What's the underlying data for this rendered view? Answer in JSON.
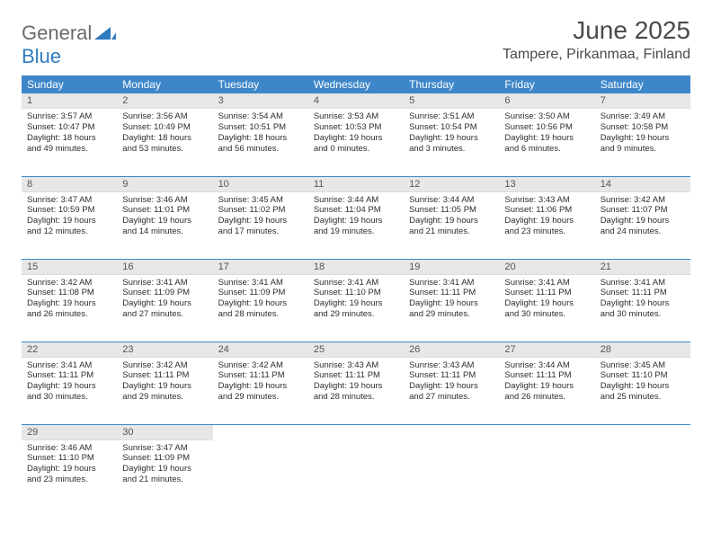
{
  "logo": {
    "part1": "General",
    "part2": "Blue"
  },
  "title": "June 2025",
  "location": "Tampere, Pirkanmaa, Finland",
  "colors": {
    "header_bg": "#3d87c9",
    "header_text": "#ffffff",
    "daynum_bg": "#e7e7e7",
    "rule": "#3d87c9",
    "logo_gray": "#6a6a6a",
    "logo_blue": "#2f7bbf"
  },
  "typography": {
    "title_fontsize": 28,
    "location_fontsize": 16,
    "dayheader_fontsize": 12,
    "daynum_fontsize": 11,
    "body_fontsize": 9.5
  },
  "day_headers": [
    "Sunday",
    "Monday",
    "Tuesday",
    "Wednesday",
    "Thursday",
    "Friday",
    "Saturday"
  ],
  "weeks": [
    [
      {
        "n": "1",
        "sunrise": "3:57 AM",
        "sunset": "10:47 PM",
        "daylight": "18 hours and 49 minutes."
      },
      {
        "n": "2",
        "sunrise": "3:56 AM",
        "sunset": "10:49 PM",
        "daylight": "18 hours and 53 minutes."
      },
      {
        "n": "3",
        "sunrise": "3:54 AM",
        "sunset": "10:51 PM",
        "daylight": "18 hours and 56 minutes."
      },
      {
        "n": "4",
        "sunrise": "3:53 AM",
        "sunset": "10:53 PM",
        "daylight": "19 hours and 0 minutes."
      },
      {
        "n": "5",
        "sunrise": "3:51 AM",
        "sunset": "10:54 PM",
        "daylight": "19 hours and 3 minutes."
      },
      {
        "n": "6",
        "sunrise": "3:50 AM",
        "sunset": "10:56 PM",
        "daylight": "19 hours and 6 minutes."
      },
      {
        "n": "7",
        "sunrise": "3:49 AM",
        "sunset": "10:58 PM",
        "daylight": "19 hours and 9 minutes."
      }
    ],
    [
      {
        "n": "8",
        "sunrise": "3:47 AM",
        "sunset": "10:59 PM",
        "daylight": "19 hours and 12 minutes."
      },
      {
        "n": "9",
        "sunrise": "3:46 AM",
        "sunset": "11:01 PM",
        "daylight": "19 hours and 14 minutes."
      },
      {
        "n": "10",
        "sunrise": "3:45 AM",
        "sunset": "11:02 PM",
        "daylight": "19 hours and 17 minutes."
      },
      {
        "n": "11",
        "sunrise": "3:44 AM",
        "sunset": "11:04 PM",
        "daylight": "19 hours and 19 minutes."
      },
      {
        "n": "12",
        "sunrise": "3:44 AM",
        "sunset": "11:05 PM",
        "daylight": "19 hours and 21 minutes."
      },
      {
        "n": "13",
        "sunrise": "3:43 AM",
        "sunset": "11:06 PM",
        "daylight": "19 hours and 23 minutes."
      },
      {
        "n": "14",
        "sunrise": "3:42 AM",
        "sunset": "11:07 PM",
        "daylight": "19 hours and 24 minutes."
      }
    ],
    [
      {
        "n": "15",
        "sunrise": "3:42 AM",
        "sunset": "11:08 PM",
        "daylight": "19 hours and 26 minutes."
      },
      {
        "n": "16",
        "sunrise": "3:41 AM",
        "sunset": "11:09 PM",
        "daylight": "19 hours and 27 minutes."
      },
      {
        "n": "17",
        "sunrise": "3:41 AM",
        "sunset": "11:09 PM",
        "daylight": "19 hours and 28 minutes."
      },
      {
        "n": "18",
        "sunrise": "3:41 AM",
        "sunset": "11:10 PM",
        "daylight": "19 hours and 29 minutes."
      },
      {
        "n": "19",
        "sunrise": "3:41 AM",
        "sunset": "11:11 PM",
        "daylight": "19 hours and 29 minutes."
      },
      {
        "n": "20",
        "sunrise": "3:41 AM",
        "sunset": "11:11 PM",
        "daylight": "19 hours and 30 minutes."
      },
      {
        "n": "21",
        "sunrise": "3:41 AM",
        "sunset": "11:11 PM",
        "daylight": "19 hours and 30 minutes."
      }
    ],
    [
      {
        "n": "22",
        "sunrise": "3:41 AM",
        "sunset": "11:11 PM",
        "daylight": "19 hours and 30 minutes."
      },
      {
        "n": "23",
        "sunrise": "3:42 AM",
        "sunset": "11:11 PM",
        "daylight": "19 hours and 29 minutes."
      },
      {
        "n": "24",
        "sunrise": "3:42 AM",
        "sunset": "11:11 PM",
        "daylight": "19 hours and 29 minutes."
      },
      {
        "n": "25",
        "sunrise": "3:43 AM",
        "sunset": "11:11 PM",
        "daylight": "19 hours and 28 minutes."
      },
      {
        "n": "26",
        "sunrise": "3:43 AM",
        "sunset": "11:11 PM",
        "daylight": "19 hours and 27 minutes."
      },
      {
        "n": "27",
        "sunrise": "3:44 AM",
        "sunset": "11:11 PM",
        "daylight": "19 hours and 26 minutes."
      },
      {
        "n": "28",
        "sunrise": "3:45 AM",
        "sunset": "11:10 PM",
        "daylight": "19 hours and 25 minutes."
      }
    ],
    [
      {
        "n": "29",
        "sunrise": "3:46 AM",
        "sunset": "11:10 PM",
        "daylight": "19 hours and 23 minutes."
      },
      {
        "n": "30",
        "sunrise": "3:47 AM",
        "sunset": "11:09 PM",
        "daylight": "19 hours and 21 minutes."
      },
      null,
      null,
      null,
      null,
      null
    ]
  ],
  "labels": {
    "sunrise": "Sunrise:",
    "sunset": "Sunset:",
    "daylight": "Daylight:"
  }
}
